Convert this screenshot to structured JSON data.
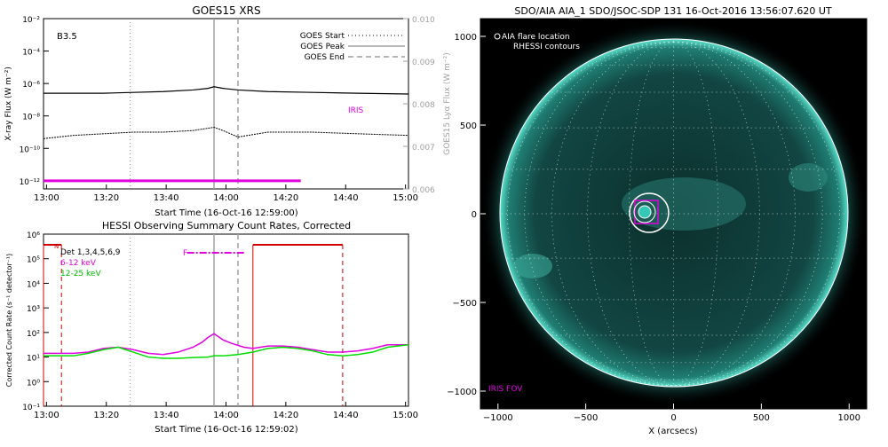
{
  "colors": {
    "goes_long": "#000000",
    "goes_short": "#000000",
    "iris": "#e000e0",
    "red": "#d00000",
    "det_6_12": "#e000e0",
    "det_12_25": "#00dd00",
    "peak_line": "#a0a0a0",
    "aia_bg": "#000000",
    "aia_disk": "#0f3b38",
    "aia_limb": "#36c8b6"
  },
  "chart_data": [
    {
      "type": "line",
      "title": "GOES15 XRS",
      "xlabel": "Start Time (16-Oct-16 12:59:00)",
      "ylabel": "X-ray Flux (W m⁻²)",
      "y2label": "GOES15 Lyα Flux (W m⁻²)",
      "x_ticks": [
        "13:00",
        "13:20",
        "13:40",
        "14:00",
        "14:20",
        "14:40",
        "15:00"
      ],
      "y_ticks": [
        "10⁻²",
        "10⁻⁴",
        "10⁻⁶",
        "10⁻⁸",
        "10⁻¹⁰",
        "10⁻¹²"
      ],
      "y2_ticks": [
        "0.010",
        "0.009",
        "0.008",
        "0.007",
        "0.006"
      ],
      "xlim_minutes": [
        0,
        122
      ],
      "ylim_log10": [
        -12.5,
        -2
      ],
      "y2lim": [
        0.006,
        0.01
      ],
      "class_label": "B3.5",
      "legend": [
        "GOES Start",
        "GOES Peak",
        "GOES End"
      ],
      "legend_position": "top-right",
      "iris_label": "IRIS",
      "vlines_minutes": {
        "start": 29,
        "peak": 57,
        "end": 65
      },
      "iris_bar_minutes": [
        0,
        86
      ],
      "series": [
        {
          "name": "long channel",
          "x_minutes": [
            0,
            10,
            20,
            30,
            40,
            50,
            55,
            57,
            60,
            65,
            75,
            90,
            105,
            122
          ],
          "log10_flux": [
            -6.6,
            -6.6,
            -6.6,
            -6.55,
            -6.5,
            -6.4,
            -6.3,
            -6.2,
            -6.3,
            -6.4,
            -6.5,
            -6.55,
            -6.6,
            -6.65
          ]
        },
        {
          "name": "short channel",
          "x_minutes": [
            0,
            10,
            20,
            30,
            40,
            50,
            57,
            60,
            65,
            75,
            90,
            105,
            122
          ],
          "log10_flux": [
            -9.4,
            -9.2,
            -9.1,
            -9.0,
            -9.0,
            -8.9,
            -8.7,
            -8.9,
            -9.3,
            -9.0,
            -9.0,
            -9.1,
            -9.2
          ]
        }
      ]
    },
    {
      "type": "line",
      "title": "HESSI Observing Summary Count Rates, Corrected",
      "xlabel": "Start Time (16-Oct-16 12:59:02)",
      "ylabel": "Corrected Count Rate (s⁻¹ detector⁻¹)",
      "x_ticks": [
        "13:00",
        "13:20",
        "13:40",
        "14:00",
        "14:20",
        "14:40",
        "15:00"
      ],
      "y_ticks": [
        "10⁶",
        "10⁵",
        "10⁴",
        "10³",
        "10²",
        "10¹",
        "10⁰",
        "10⁻¹"
      ],
      "xlim_minutes": [
        0,
        122
      ],
      "ylim_log10": [
        -1,
        6
      ],
      "legend": [
        "Det 1,3,4,5,6,9",
        "6-12 keV",
        "12-25 keV"
      ],
      "legend_position": "top-left",
      "flag_n_label": "N",
      "flag_f_label": "F",
      "night_segments_minutes": [
        [
          0,
          6
        ],
        [
          70,
          100
        ]
      ],
      "flare_flag_minutes": [
        48,
        67
      ],
      "vlines_minutes": {
        "start": 29,
        "peak": 57,
        "end": 65
      },
      "series": [
        {
          "name": "6-12 keV",
          "x_minutes": [
            0,
            10,
            15,
            20,
            25,
            30,
            35,
            40,
            45,
            50,
            53,
            55,
            57,
            60,
            63,
            67,
            70,
            75,
            80,
            85,
            90,
            95,
            100,
            105,
            110,
            115,
            122
          ],
          "log10_rate": [
            1.15,
            1.15,
            1.2,
            1.35,
            1.4,
            1.3,
            1.15,
            1.1,
            1.2,
            1.4,
            1.6,
            1.8,
            1.95,
            1.7,
            1.55,
            1.4,
            1.35,
            1.45,
            1.45,
            1.4,
            1.3,
            1.2,
            1.2,
            1.25,
            1.35,
            1.5,
            1.5
          ]
        },
        {
          "name": "12-25 keV",
          "x_minutes": [
            0,
            10,
            15,
            20,
            25,
            30,
            35,
            40,
            45,
            50,
            55,
            57,
            60,
            65,
            70,
            75,
            80,
            85,
            90,
            95,
            100,
            105,
            110,
            115,
            122
          ],
          "log10_rate": [
            1.05,
            1.05,
            1.15,
            1.3,
            1.4,
            1.2,
            1.0,
            0.95,
            0.95,
            0.98,
            1.0,
            1.05,
            1.05,
            1.1,
            1.2,
            1.35,
            1.4,
            1.35,
            1.25,
            1.1,
            1.05,
            1.1,
            1.2,
            1.4,
            1.5
          ]
        }
      ]
    },
    {
      "type": "heatmap",
      "title": "SDO/AIA AIA_1 SDO/JSOC-SDP 131 16-Oct-2016 13:56:07.620 UT",
      "xlabel": "X (arcsecs)",
      "ylabel": "",
      "x_ticks": [
        "−1000",
        "−500",
        "0",
        "500",
        "1000"
      ],
      "y_ticks": [
        "1000",
        "500",
        "0",
        "−500",
        "−1000"
      ],
      "xlim": [
        -1100,
        1100
      ],
      "ylim": [
        -1100,
        1100
      ],
      "legend": [
        "AIA flare location",
        "RHESSI contours"
      ],
      "legend_position": "top-left",
      "fov_label": "IRIS FOV",
      "solar_radius_arcsec": 980,
      "flare_location_arcsec": [
        -180,
        0
      ]
    }
  ]
}
